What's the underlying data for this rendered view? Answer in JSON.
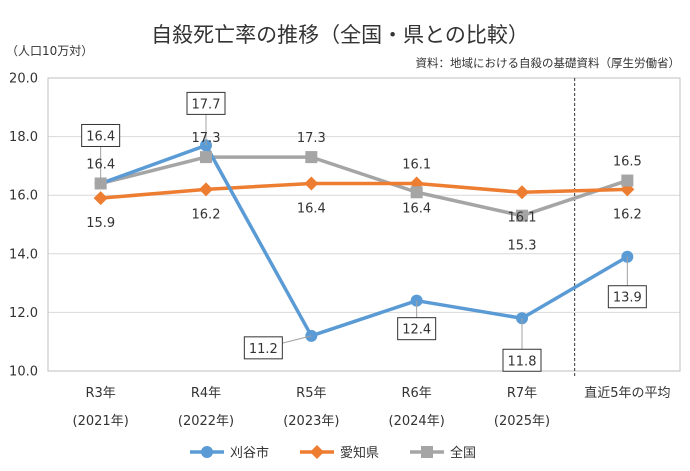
{
  "chart_data": {
    "type": "line",
    "title": "自殺死亡率の推移（全国・県との比較）",
    "ylabel": "（人口10万対）",
    "source": "資料：地域における自殺の基礎資料（厚生労働省）",
    "ylim": [
      10.0,
      20.0
    ],
    "yticks": [
      "10.0",
      "12.0",
      "14.0",
      "16.0",
      "18.0",
      "20.0"
    ],
    "grid": true,
    "legend_position": "bottom",
    "categories": [
      [
        "R3年",
        "(2021年)"
      ],
      [
        "R4年",
        "(2022年)"
      ],
      [
        "R5年",
        "(2023年)"
      ],
      [
        "R6年",
        "(2024年)"
      ],
      [
        "R7年",
        "(2025年)"
      ],
      [
        "直近5年の平均",
        ""
      ]
    ],
    "series": [
      {
        "name": "刈谷市",
        "color": "#5B9BD5",
        "marker": "circle",
        "values": [
          16.4,
          17.7,
          11.2,
          12.4,
          11.8,
          13.9
        ],
        "labels": [
          "16.4",
          "17.7",
          "11.2",
          "12.4",
          "11.8",
          "13.9"
        ]
      },
      {
        "name": "愛知県",
        "color": "#ED7D31",
        "marker": "diamond",
        "values": [
          15.9,
          16.2,
          16.4,
          16.4,
          16.1,
          16.2
        ],
        "labels": [
          "15.9",
          "16.2",
          "16.4",
          "16.4",
          "16.1",
          "16.2"
        ]
      },
      {
        "name": "全国",
        "color": "#A5A5A5",
        "marker": "square",
        "values": [
          16.4,
          17.3,
          17.3,
          16.1,
          15.3,
          16.5
        ],
        "labels": [
          "16.4",
          "17.3",
          "17.3",
          "16.1",
          "15.3",
          "16.5"
        ]
      }
    ],
    "separator_between": [
      4,
      5
    ]
  }
}
